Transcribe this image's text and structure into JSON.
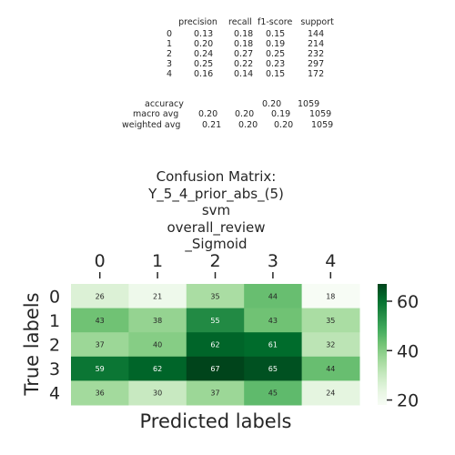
{
  "report": {
    "header": [
      "precision",
      "recall",
      "f1-score",
      "support"
    ],
    "rows": [
      {
        "label": "0",
        "precision": "0.13",
        "recall": "0.18",
        "f1": "0.15",
        "support": "144"
      },
      {
        "label": "1",
        "precision": "0.20",
        "recall": "0.18",
        "f1": "0.19",
        "support": "214"
      },
      {
        "label": "2",
        "precision": "0.24",
        "recall": "0.27",
        "f1": "0.25",
        "support": "232"
      },
      {
        "label": "3",
        "precision": "0.25",
        "recall": "0.22",
        "f1": "0.23",
        "support": "297"
      },
      {
        "label": "4",
        "precision": "0.16",
        "recall": "0.14",
        "f1": "0.15",
        "support": "172"
      }
    ],
    "accuracy": {
      "label": "accuracy",
      "f1": "0.20",
      "support": "1059"
    },
    "macro": {
      "label": "macro avg",
      "precision": "0.20",
      "recall": "0.20",
      "f1": "0.19",
      "support": "1059"
    },
    "weighted": {
      "label": "weighted avg",
      "precision": "0.21",
      "recall": "0.20",
      "f1": "0.20",
      "support": "1059"
    }
  },
  "chart_data": {
    "type": "heatmap",
    "title_lines": [
      "Confusion Matrix:",
      "Y_5_4_prior_abs_(5)",
      "svm",
      "overall_review",
      "_Sigmoid"
    ],
    "xlabel": "Predicted labels",
    "ylabel": "True labels",
    "x_categories": [
      "0",
      "1",
      "2",
      "3",
      "4"
    ],
    "y_categories": [
      "0",
      "1",
      "2",
      "3",
      "4"
    ],
    "values": [
      [
        26,
        21,
        35,
        44,
        18
      ],
      [
        43,
        38,
        55,
        43,
        35
      ],
      [
        37,
        40,
        62,
        61,
        32
      ],
      [
        59,
        62,
        67,
        65,
        44
      ],
      [
        36,
        30,
        37,
        45,
        24
      ]
    ],
    "colormap": "Greens",
    "vmin": 18,
    "vmax": 67,
    "colorbar_ticks": [
      20,
      40,
      60
    ]
  }
}
